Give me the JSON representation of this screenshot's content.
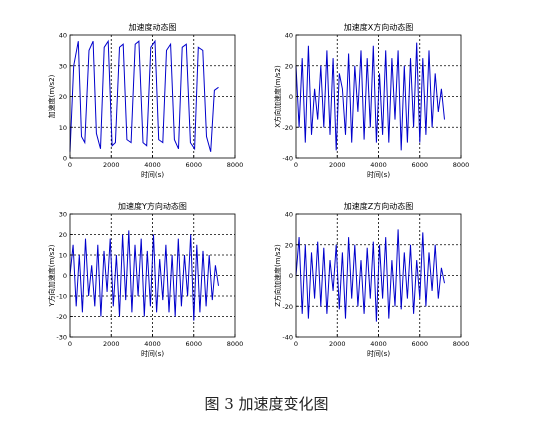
{
  "caption": "图 3  加速度变化图",
  "chart_data": [
    {
      "type": "line",
      "title": "加速度动态图",
      "xlabel": "时间(s)",
      "ylabel": "加速度(m/s2)",
      "xlim": [
        0,
        8000
      ],
      "ylim": [
        0,
        40
      ],
      "xticks": [
        "0",
        "2000",
        "4000",
        "6000",
        "8000"
      ],
      "yticks": [
        "0",
        "10",
        "20",
        "30",
        "40"
      ],
      "grid": true,
      "series": [
        {
          "color": "#0000cc",
          "x": [
            0,
            180,
            400,
            560,
            720,
            920,
            1120,
            1280,
            1480,
            1660,
            1850,
            2040,
            2200,
            2400,
            2580,
            2760,
            2960,
            3160,
            3340,
            3540,
            3720,
            3920,
            4120,
            4300,
            4500,
            4680,
            4880,
            5060,
            5260,
            5440,
            5640,
            5840,
            6040,
            6220,
            6440,
            6620,
            6820,
            7000,
            7200
          ],
          "y": [
            2,
            30,
            38,
            7,
            5,
            35,
            38,
            8,
            3,
            36,
            38,
            4,
            5,
            36,
            37,
            6,
            5,
            37,
            38,
            5,
            4,
            36,
            38,
            6,
            5,
            35,
            37,
            6,
            3,
            36,
            37,
            5,
            3,
            36,
            35,
            7,
            2,
            22,
            23
          ]
        }
      ]
    },
    {
      "type": "line",
      "title": "加速度X方向动态图",
      "xlabel": "时间(s)",
      "ylabel": "X方向加速度(m/s2)",
      "xlim": [
        0,
        8000
      ],
      "ylim": [
        -40,
        40
      ],
      "xticks": [
        "0",
        "2000",
        "4000",
        "6000",
        "8000"
      ],
      "yticks": [
        "-40",
        "-20",
        "0",
        "20",
        "40"
      ],
      "grid": true,
      "series": [
        {
          "color": "#0000cc",
          "x": [
            0,
            150,
            300,
            450,
            600,
            750,
            900,
            1050,
            1200,
            1350,
            1500,
            1650,
            1800,
            1950,
            2100,
            2250,
            2400,
            2550,
            2700,
            2850,
            3000,
            3150,
            3300,
            3450,
            3600,
            3750,
            3900,
            4050,
            4200,
            4350,
            4500,
            4650,
            4800,
            4950,
            5100,
            5250,
            5400,
            5550,
            5700,
            5850,
            6000,
            6150,
            6300,
            6450,
            6600,
            6750,
            6900,
            7050,
            7200
          ],
          "y": [
            20,
            -20,
            25,
            -30,
            33,
            -25,
            5,
            -15,
            20,
            -20,
            30,
            -25,
            25,
            -35,
            15,
            5,
            -25,
            28,
            -30,
            20,
            -10,
            30,
            -28,
            25,
            -20,
            33,
            -30,
            15,
            -25,
            30,
            -30,
            25,
            -15,
            30,
            -35,
            20,
            -30,
            25,
            -20,
            35,
            -30,
            25,
            -25,
            30,
            -20,
            15,
            -10,
            5,
            -15
          ]
        }
      ]
    },
    {
      "type": "line",
      "title": "加速度Y方向动态图",
      "xlabel": "时间(s)",
      "ylabel": "Y方向加速度(m/s2)",
      "xlim": [
        0,
        8000
      ],
      "ylim": [
        -30,
        30
      ],
      "xticks": [
        "0",
        "2000",
        "4000",
        "6000",
        "8000"
      ],
      "yticks": [
        "-30",
        "-20",
        "-10",
        "0",
        "10",
        "20",
        "30"
      ],
      "grid": true,
      "series": [
        {
          "color": "#0000cc",
          "x": [
            0,
            150,
            300,
            450,
            600,
            750,
            900,
            1050,
            1200,
            1350,
            1500,
            1650,
            1800,
            1950,
            2100,
            2250,
            2400,
            2550,
            2700,
            2850,
            3000,
            3150,
            3300,
            3450,
            3600,
            3750,
            3900,
            4050,
            4200,
            4350,
            4500,
            4650,
            4800,
            4950,
            5100,
            5250,
            5400,
            5550,
            5700,
            5850,
            6000,
            6150,
            6300,
            6450,
            6600,
            6750,
            6900,
            7050,
            7200
          ],
          "y": [
            0,
            15,
            -15,
            10,
            -18,
            18,
            -10,
            5,
            -15,
            15,
            -20,
            12,
            -8,
            18,
            -15,
            10,
            -20,
            20,
            -12,
            22,
            -18,
            15,
            -10,
            18,
            -20,
            12,
            -15,
            20,
            -18,
            8,
            -12,
            15,
            -18,
            10,
            -20,
            18,
            -15,
            10,
            -10,
            20,
            -22,
            15,
            -18,
            12,
            -15,
            10,
            -12,
            5,
            -5
          ]
        }
      ]
    },
    {
      "type": "line",
      "title": "加速度Z方向动态图",
      "xlabel": "时间(s)",
      "ylabel": "Z方向加速度(m/s2)",
      "xlim": [
        0,
        8000
      ],
      "ylim": [
        -40,
        40
      ],
      "xticks": [
        "0",
        "2000",
        "4000",
        "6000",
        "8000"
      ],
      "yticks": [
        "-40",
        "-20",
        "0",
        "20",
        "40"
      ],
      "grid": true,
      "series": [
        {
          "color": "#0000cc",
          "x": [
            0,
            150,
            300,
            450,
            600,
            750,
            900,
            1050,
            1200,
            1350,
            1500,
            1650,
            1800,
            1950,
            2100,
            2250,
            2400,
            2550,
            2700,
            2850,
            3000,
            3150,
            3300,
            3450,
            3600,
            3750,
            3900,
            4050,
            4200,
            4350,
            4500,
            4650,
            4800,
            4950,
            5100,
            5250,
            5400,
            5550,
            5700,
            5850,
            6000,
            6150,
            6300,
            6450,
            6600,
            6750,
            6900,
            7050,
            7200
          ],
          "y": [
            0,
            25,
            -25,
            20,
            -28,
            15,
            -15,
            22,
            -20,
            18,
            -25,
            10,
            -10,
            20,
            -22,
            15,
            -28,
            25,
            -15,
            20,
            -20,
            10,
            -25,
            18,
            -15,
            22,
            -30,
            20,
            -15,
            25,
            -28,
            10,
            -20,
            30,
            -22,
            15,
            -15,
            20,
            -25,
            10,
            -15,
            28,
            -20,
            15,
            -10,
            20,
            -15,
            5,
            -5
          ]
        }
      ]
    }
  ]
}
